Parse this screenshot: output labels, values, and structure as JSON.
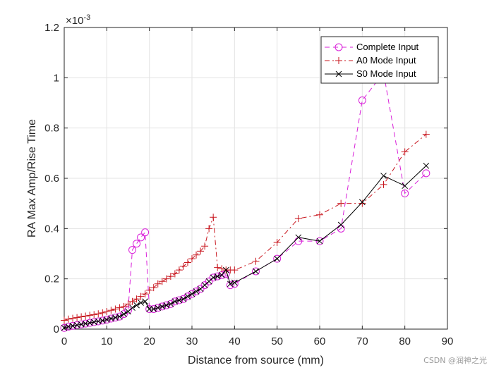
{
  "chart_data": {
    "type": "line",
    "title": "",
    "xlabel": "Distance from source (mm)",
    "ylabel": "RA Max Amp/Rise Time",
    "y_exponent_label": "×10",
    "y_exponent": "-3",
    "xlim": [
      0,
      90
    ],
    "ylim": [
      0,
      1.2
    ],
    "xticks": [
      0,
      10,
      20,
      30,
      40,
      50,
      60,
      70,
      80,
      90
    ],
    "yticks": [
      0,
      0.2,
      0.4,
      0.6,
      0.8,
      1,
      1.2
    ],
    "xtick_labels": [
      "0",
      "10",
      "20",
      "30",
      "40",
      "50",
      "60",
      "70",
      "80",
      "90"
    ],
    "ytick_labels": [
      "0",
      "0.2",
      "0.4",
      "0.6",
      "0.8",
      "1",
      "1.2"
    ],
    "grid": true,
    "legend_position": "top-right",
    "series": [
      {
        "name": "Complete Input",
        "color": "#d91fd9",
        "marker": "circle",
        "dash": "dashed",
        "x": [
          0,
          1,
          2,
          3,
          4,
          5,
          6,
          7,
          8,
          9,
          10,
          11,
          12,
          13,
          14,
          15,
          16,
          17,
          18,
          19,
          20,
          21,
          22,
          23,
          24,
          25,
          26,
          27,
          28,
          29,
          30,
          31,
          32,
          33,
          34,
          35,
          36,
          37,
          38,
          39,
          40,
          45,
          50,
          55,
          60,
          65,
          70,
          75,
          80,
          85
        ],
        "y": [
          0.005,
          0.01,
          0.013,
          0.016,
          0.019,
          0.022,
          0.025,
          0.028,
          0.031,
          0.034,
          0.038,
          0.042,
          0.046,
          0.05,
          0.06,
          0.075,
          0.315,
          0.34,
          0.365,
          0.385,
          0.08,
          0.08,
          0.085,
          0.09,
          0.095,
          0.1,
          0.11,
          0.115,
          0.12,
          0.13,
          0.14,
          0.15,
          0.16,
          0.175,
          0.19,
          0.205,
          0.21,
          0.215,
          0.22,
          0.175,
          0.18,
          0.23,
          0.28,
          0.35,
          0.35,
          0.4,
          0.91,
          1.02,
          0.54,
          0.62
        ]
      },
      {
        "name": "A0 Mode Input",
        "color": "#c8161e",
        "marker": "plus",
        "dash": "dashdot",
        "x": [
          0,
          1,
          2,
          3,
          4,
          5,
          6,
          7,
          8,
          9,
          10,
          11,
          12,
          13,
          14,
          15,
          16,
          17,
          18,
          19,
          20,
          21,
          22,
          23,
          24,
          25,
          26,
          27,
          28,
          29,
          30,
          31,
          32,
          33,
          34,
          35,
          36,
          37,
          38,
          39,
          40,
          45,
          50,
          55,
          60,
          65,
          70,
          75,
          80,
          85
        ],
        "y": [
          0.035,
          0.04,
          0.043,
          0.046,
          0.049,
          0.052,
          0.055,
          0.058,
          0.061,
          0.065,
          0.07,
          0.075,
          0.08,
          0.085,
          0.09,
          0.1,
          0.11,
          0.12,
          0.13,
          0.14,
          0.155,
          0.165,
          0.18,
          0.19,
          0.2,
          0.21,
          0.22,
          0.235,
          0.25,
          0.265,
          0.28,
          0.295,
          0.31,
          0.33,
          0.4,
          0.445,
          0.245,
          0.24,
          0.235,
          0.235,
          0.235,
          0.27,
          0.345,
          0.44,
          0.455,
          0.5,
          0.5,
          0.575,
          0.705,
          0.775
        ]
      },
      {
        "name": "S0 Mode Input",
        "color": "#000000",
        "marker": "x",
        "dash": "solid",
        "x": [
          0,
          1,
          2,
          3,
          4,
          5,
          6,
          7,
          8,
          9,
          10,
          11,
          12,
          13,
          14,
          15,
          16,
          17,
          18,
          19,
          20,
          21,
          22,
          23,
          24,
          25,
          26,
          27,
          28,
          29,
          30,
          31,
          32,
          33,
          34,
          35,
          36,
          37,
          38,
          39,
          40,
          45,
          50,
          55,
          60,
          65,
          70,
          75,
          80,
          85
        ],
        "y": [
          0.005,
          0.01,
          0.013,
          0.016,
          0.019,
          0.022,
          0.025,
          0.028,
          0.031,
          0.034,
          0.038,
          0.042,
          0.046,
          0.05,
          0.06,
          0.07,
          0.085,
          0.095,
          0.105,
          0.11,
          0.08,
          0.08,
          0.085,
          0.09,
          0.095,
          0.1,
          0.11,
          0.115,
          0.12,
          0.13,
          0.14,
          0.15,
          0.16,
          0.175,
          0.19,
          0.205,
          0.21,
          0.215,
          0.235,
          0.18,
          0.185,
          0.23,
          0.28,
          0.365,
          0.35,
          0.415,
          0.505,
          0.61,
          0.57,
          0.65
        ]
      }
    ]
  },
  "watermark": "CSDN @润神之光"
}
